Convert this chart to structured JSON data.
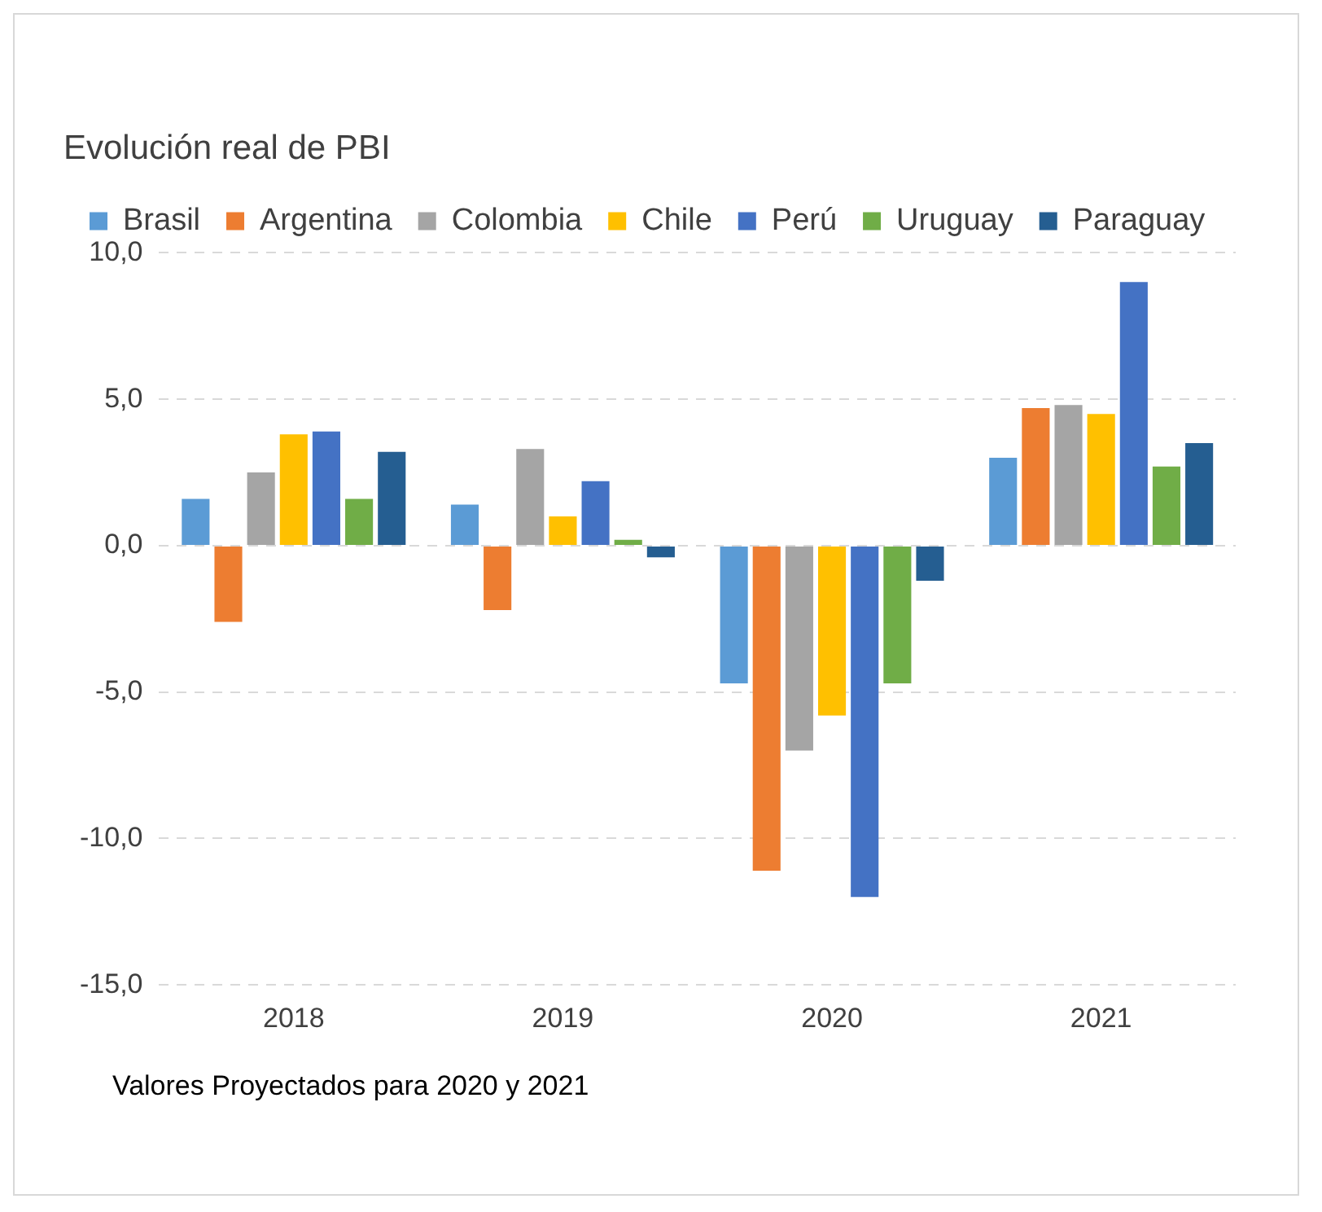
{
  "chart_data": {
    "type": "bar",
    "title": "Evolución real de PBI",
    "categories": [
      "2018",
      "2019",
      "2020",
      "2021"
    ],
    "series": [
      {
        "name": "Brasil",
        "color": "#5b9bd5",
        "values": [
          1.6,
          1.4,
          -4.7,
          3.0
        ]
      },
      {
        "name": "Argentina",
        "color": "#ed7d31",
        "values": [
          -2.6,
          -2.2,
          -11.1,
          4.7
        ]
      },
      {
        "name": "Colombia",
        "color": "#a5a5a5",
        "values": [
          2.5,
          3.3,
          -7.0,
          4.8
        ]
      },
      {
        "name": "Chile",
        "color": "#ffc000",
        "values": [
          3.8,
          1.0,
          -5.8,
          4.5
        ]
      },
      {
        "name": "Perú",
        "color": "#4472c4",
        "values": [
          3.9,
          2.2,
          -12.0,
          9.0
        ]
      },
      {
        "name": "Uruguay",
        "color": "#70ad47",
        "values": [
          1.6,
          0.2,
          -4.7,
          2.7
        ]
      },
      {
        "name": "Paraguay",
        "color": "#255e91",
        "values": [
          3.2,
          -0.4,
          -1.2,
          3.5
        ]
      }
    ],
    "ylim": [
      -15,
      10
    ],
    "yticks": [
      {
        "value": -15,
        "label": "-15,0"
      },
      {
        "value": -10,
        "label": "-10,0"
      },
      {
        "value": -5,
        "label": "-5,0"
      },
      {
        "value": 0,
        "label": "0,0"
      },
      {
        "value": 5,
        "label": "5,0"
      },
      {
        "value": 10,
        "label": "10,0"
      }
    ],
    "grid": "y",
    "legend": "top",
    "annotations": [
      "Valores Proyectados para 2020 y 2021"
    ]
  }
}
